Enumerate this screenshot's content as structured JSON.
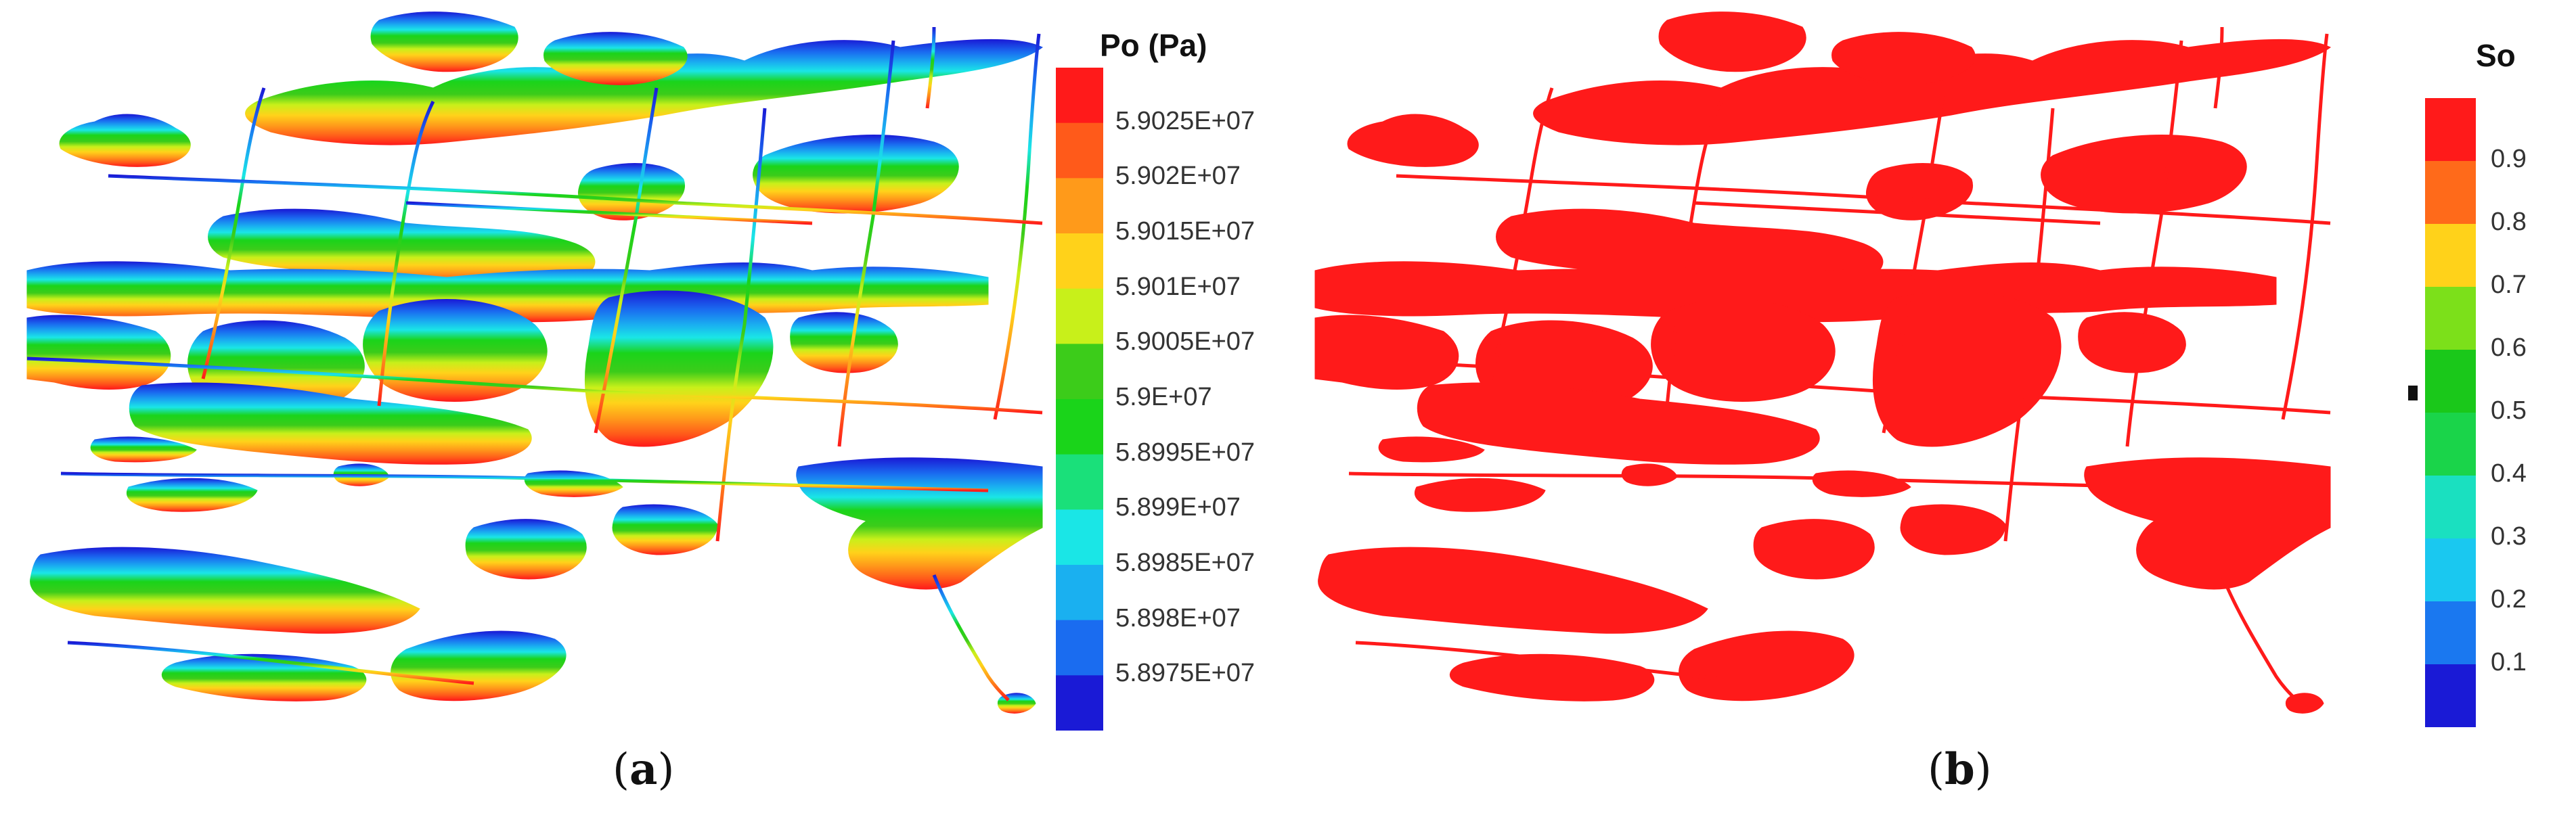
{
  "panels": [
    {
      "label_open": "(",
      "label_letter": "a",
      "label_close": ")",
      "colorbar": {
        "title": "Po (Pa)",
        "labels": [
          "5.9025E+07",
          "5.902E+07",
          "5.9015E+07",
          "5.901E+07",
          "5.9005E+07",
          "5.9E+07",
          "5.8995E+07",
          "5.899E+07",
          "5.8985E+07",
          "5.898E+07",
          "5.8975E+07"
        ],
        "colors": [
          "#ff1a1a",
          "#ff5a1a",
          "#ff9a1a",
          "#ffd21a",
          "#c8f01a",
          "#3ccc1a",
          "#1ad41a",
          "#1ae07a",
          "#1ae6e6",
          "#1ab0f0",
          "#1a6cf0",
          "#1a1ad6"
        ]
      }
    },
    {
      "label_open": "(",
      "label_letter": "b",
      "label_close": ")",
      "colorbar": {
        "title": "So",
        "labels": [
          "0.9",
          "0.8",
          "0.7",
          "0.6",
          "0.5",
          "0.4",
          "0.3",
          "0.2",
          "0.1"
        ],
        "colors": [
          "#ff1a1a",
          "#ff6a1a",
          "#ffd21a",
          "#7ce01a",
          "#1ac81a",
          "#1ad44a",
          "#1ae0c0",
          "#1ac8f0",
          "#1a78f0",
          "#1a1ad6"
        ]
      }
    }
  ],
  "map_fill_b": "#ff1a1a"
}
